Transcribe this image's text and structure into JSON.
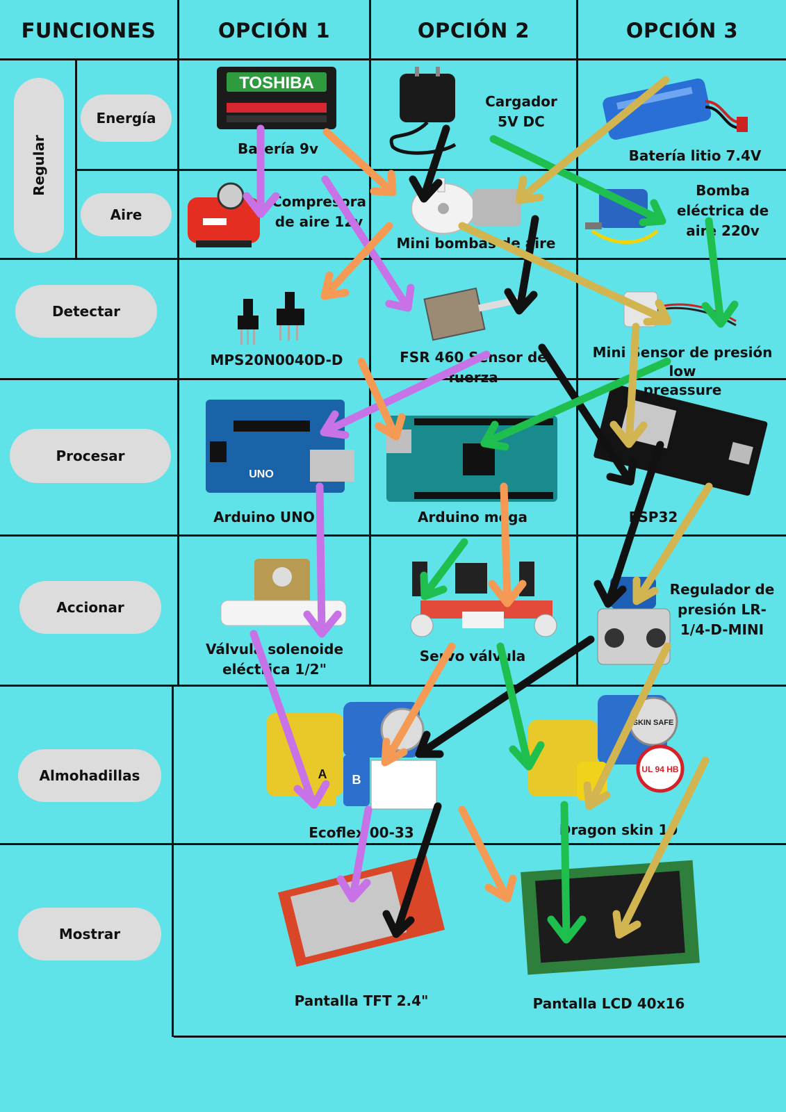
{
  "headers": {
    "functions": "FUNCIONES",
    "option1": "OPCIÓN 1",
    "option2": "OPCIÓN 2",
    "option3": "OPCIÓN 3"
  },
  "functions": {
    "regular": "Regular",
    "energy": "Energía",
    "air": "Aire",
    "detect": "Detectar",
    "process": "Procesar",
    "actuate": "Accionar",
    "pads": "Almohadillas",
    "display": "Mostrar"
  },
  "components": {
    "battery9v": "Batería 9v",
    "battery9v_brand": "TOSHIBA",
    "charger": "Cargador\n5V DC",
    "lithium": "Batería litio 7.4V",
    "compressor": "Compresora\nde aire 12v",
    "minipump": "Mini bombas de aire",
    "electric_pump": "Bomba\neléctrica de\naire 220v",
    "mps": "MPS20N0040D-D",
    "fsr": "FSR 460 Sensor de fuerza",
    "mini_sensor": "Mini Sensor de presión low\npreassure",
    "uno": "Arduino UNO",
    "uno_board_text": "UNO",
    "mega": "Arduino mega",
    "esp32": "ESP32",
    "solenoid": "Válvula solenoide\neléctrica 1/2\"",
    "servo_valve": "Servo válvula",
    "regulator": "Regulador de\npresión LR-\n1/4-D-MINI",
    "ecoflex": "Ecoflex 00-33",
    "ecoflex_jar_a": "A",
    "ecoflex_jar_b": "B",
    "dragon": "Dragon skin 10",
    "skin_safe": "SKIN SAFE",
    "ul_badge": "UL 94 HB",
    "tft": "Pantalla TFT 2.4\"",
    "lcd": "Pantalla LCD 40x16"
  },
  "colors": {
    "background": "#5fe3e8",
    "pill": "#dcdcdc",
    "purple": "#c772e6",
    "orange": "#f59a55",
    "black": "#111111",
    "green": "#1fbf4f",
    "gold": "#d2b451"
  },
  "paths": [
    {
      "name": "purple-path",
      "color": "purple"
    },
    {
      "name": "orange-path",
      "color": "orange"
    },
    {
      "name": "black-path",
      "color": "black"
    },
    {
      "name": "green-path",
      "color": "green"
    },
    {
      "name": "gold-path",
      "color": "gold"
    }
  ]
}
